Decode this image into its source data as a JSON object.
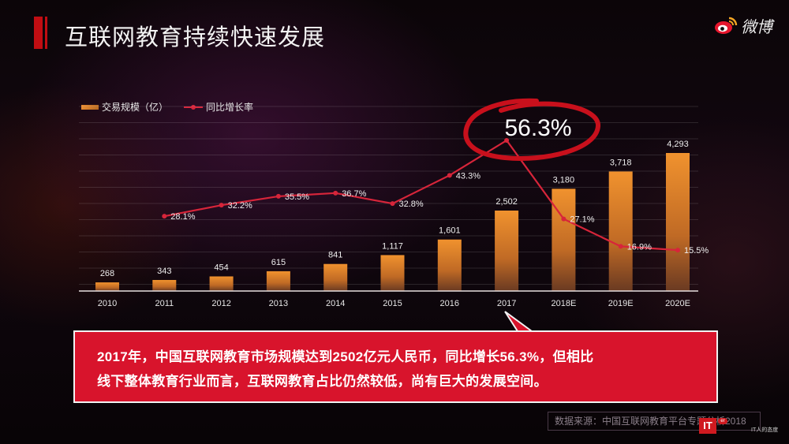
{
  "slide": {
    "title": "互联网教育持续快速发展",
    "brand": {
      "name": "微博",
      "icon": "weibo-logo-icon"
    },
    "legend": {
      "bar_label": "交易规模（亿）",
      "line_label": "同比增长率"
    },
    "highlight_label": "56.3%",
    "callout": {
      "line1": "2017年，中国互联网教育市场规模达到2502亿元人民币，同比增长56.3%，但相比",
      "line2": "线下整体教育行业而言，互联网教育占比仍然较低，尚有巨大的发展空间。"
    },
    "source": "数据来源：中国互联网教育平台专题分析2018",
    "watermark": {
      "logo": "IT",
      "tag": "er",
      "slogan": "IT人的态度"
    },
    "colors": {
      "accent_red": "#d8142c",
      "bar_orange": "#e88a30",
      "line_red": "#d7253a",
      "background": "#0a0507"
    }
  },
  "chart_data": {
    "type": "bar",
    "title": "互联网教育持续快速发展",
    "categories": [
      "2010",
      "2011",
      "2012",
      "2013",
      "2014",
      "2015",
      "2016",
      "2017",
      "2018E",
      "2019E",
      "2020E"
    ],
    "series": [
      {
        "name": "交易规模（亿）",
        "type": "bar",
        "values": [
          268,
          343,
          454,
          615,
          841,
          1117,
          1601,
          2502,
          3180,
          3718,
          4293
        ],
        "labels": [
          "268",
          "343",
          "454",
          "615",
          "841",
          "1,117",
          "1,601",
          "2,502",
          "3,180",
          "3,718",
          "4,293"
        ]
      },
      {
        "name": "同比增长率",
        "type": "line",
        "unit": "%",
        "values": [
          null,
          28.1,
          32.2,
          35.5,
          36.7,
          32.8,
          43.3,
          56.3,
          27.1,
          16.9,
          15.5
        ],
        "labels": [
          "",
          "28.1%",
          "32.2%",
          "35.5%",
          "36.7%",
          "32.8%",
          "43.3%",
          "",
          "27.1%",
          "16.9%",
          "15.5%"
        ]
      }
    ],
    "annotations": [
      {
        "text": "56.3%",
        "category": "2017",
        "style": "hand-drawn red circle"
      }
    ],
    "xlabel": "",
    "ylabel": "",
    "grid": true,
    "legend_position": "top-left"
  }
}
